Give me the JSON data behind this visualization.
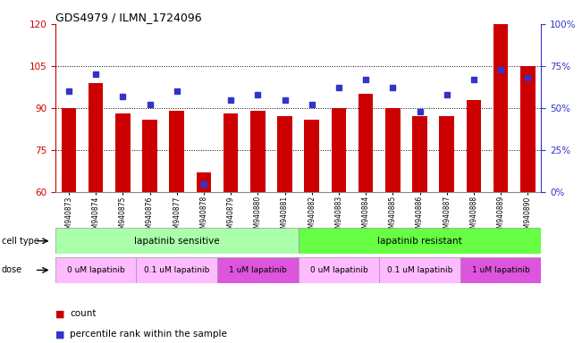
{
  "title": "GDS4979 / ILMN_1724096",
  "samples": [
    "GSM940873",
    "GSM940874",
    "GSM940875",
    "GSM940876",
    "GSM940877",
    "GSM940878",
    "GSM940879",
    "GSM940880",
    "GSM940881",
    "GSM940882",
    "GSM940883",
    "GSM940884",
    "GSM940885",
    "GSM940886",
    "GSM940887",
    "GSM940888",
    "GSM940889",
    "GSM940890"
  ],
  "counts": [
    90,
    99,
    88,
    86,
    89,
    67,
    88,
    89,
    87,
    86,
    90,
    95,
    90,
    87,
    87,
    93,
    120,
    105
  ],
  "percentile_ranks": [
    60,
    70,
    57,
    52,
    60,
    5,
    55,
    58,
    55,
    52,
    62,
    67,
    62,
    48,
    58,
    67,
    73,
    68
  ],
  "bar_color": "#cc0000",
  "dot_color": "#3333cc",
  "ylim_left": [
    60,
    120
  ],
  "ylim_right": [
    0,
    100
  ],
  "yticks_left": [
    60,
    75,
    90,
    105,
    120
  ],
  "yticks_right": [
    0,
    25,
    50,
    75,
    100
  ],
  "ytick_labels_right": [
    "0%",
    "25%",
    "50%",
    "75%",
    "100%"
  ],
  "cell_type_sensitive_color": "#aaffaa",
  "cell_type_resistant_color": "#66ff44",
  "dose_light_color": "#ffbbff",
  "dose_dark_color": "#dd55dd",
  "cell_type_groups": [
    {
      "label": "lapatinib sensitive",
      "start": 0,
      "end": 9
    },
    {
      "label": "lapatinib resistant",
      "start": 9,
      "end": 18
    }
  ],
  "dose_groups": [
    {
      "label": "0 uM lapatinib",
      "start": 0,
      "end": 3,
      "dark": false
    },
    {
      "label": "0.1 uM lapatinib",
      "start": 3,
      "end": 6,
      "dark": false
    },
    {
      "label": "1 uM lapatinib",
      "start": 6,
      "end": 9,
      "dark": true
    },
    {
      "label": "0 uM lapatinib",
      "start": 9,
      "end": 12,
      "dark": false
    },
    {
      "label": "0.1 uM lapatinib",
      "start": 12,
      "end": 15,
      "dark": false
    },
    {
      "label": "1 uM lapatinib",
      "start": 15,
      "end": 18,
      "dark": true
    }
  ],
  "cell_type_label": "cell type",
  "dose_label": "dose",
  "legend_count": "count",
  "legend_percentile": "percentile rank within the sample",
  "background_color": "#ffffff",
  "tick_label_color_left": "#cc0000",
  "tick_label_color_right": "#3333cc",
  "grid_yticks": [
    75,
    90,
    105
  ]
}
